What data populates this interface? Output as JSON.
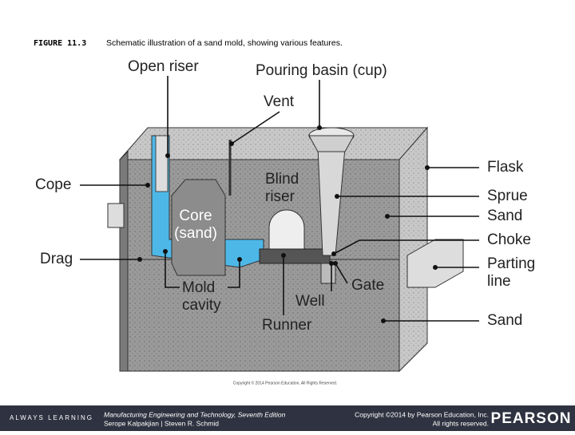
{
  "caption": {
    "number": "FIGURE 11.3",
    "text": "Schematic illustration of a sand mold, showing various features."
  },
  "labels": {
    "open_riser": [
      "Open riser"
    ],
    "pouring_basin": [
      "Pouring basin (cup)"
    ],
    "vent": [
      "Vent"
    ],
    "blind_riser": [
      "Blind",
      "riser"
    ],
    "core": [
      "Core",
      "(sand)"
    ],
    "cope": [
      "Cope"
    ],
    "drag": [
      "Drag"
    ],
    "flask": [
      "Flask"
    ],
    "sprue": [
      "Sprue"
    ],
    "sand_top": [
      "Sand"
    ],
    "choke": [
      "Choke"
    ],
    "parting_line": [
      "Parting",
      "line"
    ],
    "mold_cavity": [
      "Mold",
      "cavity"
    ],
    "well": [
      "Well"
    ],
    "gate": [
      "Gate"
    ],
    "runner": [
      "Runner"
    ],
    "sand_bottom": [
      "Sand"
    ]
  },
  "image_copyright": "Copyright © 2014 Pearson Education, All Rights Reserved.",
  "footer": {
    "brand": "ALWAYS LEARNING",
    "book": "Manufacturing Engineering and Technology, Seventh Edition",
    "authors": "Serope Kalpakjian | Steven R. Schmid",
    "copyright": "Copyright ©2014 by Pearson Education, Inc.",
    "rights": "All rights reserved.",
    "publisher": "PEARSON"
  }
}
